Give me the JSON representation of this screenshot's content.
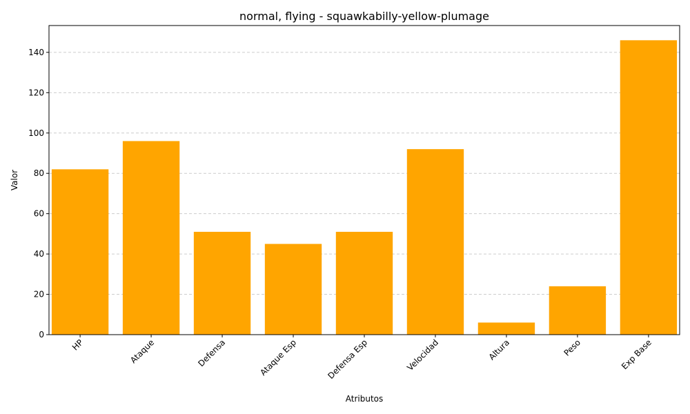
{
  "chart_data": {
    "type": "bar",
    "title": "normal, flying - squawkabilly-yellow-plumage",
    "xlabel": "Atributos",
    "ylabel": "Valor",
    "categories": [
      "HP",
      "Ataque",
      "Defensa",
      "Ataque Esp",
      "Defensa Esp",
      "Velocidad",
      "Altura",
      "Peso",
      "Exp Base"
    ],
    "values": [
      82,
      96,
      51,
      45,
      51,
      92,
      6,
      24,
      146
    ],
    "ylim": [
      0,
      153.3
    ],
    "yticks": [
      0,
      20,
      40,
      60,
      80,
      100,
      120,
      140
    ],
    "grid": "y-dashed",
    "bar_color": "#ffa500",
    "x_tick_rotation_deg": 45
  }
}
